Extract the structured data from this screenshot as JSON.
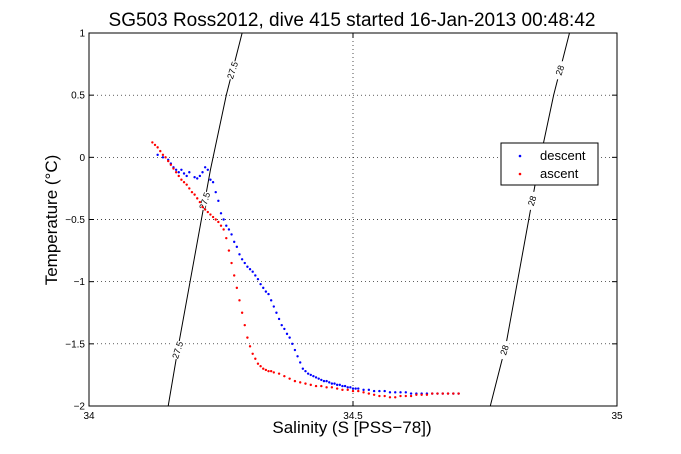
{
  "chart_data": {
    "type": "scatter",
    "title": "SG503 Ross2012, dive 415 started 16-Jan-2013 00:48:42",
    "xlabel": "Salinity (S [PSS−78])",
    "ylabel": "Temperature (°C)",
    "xlim": [
      34,
      35
    ],
    "ylim": [
      -2,
      1
    ],
    "xticks": [
      34,
      34.5,
      35
    ],
    "xtick_labels": [
      "34",
      "34.5",
      "35"
    ],
    "yticks": [
      -2,
      -1.5,
      -1,
      -0.5,
      0,
      0.5,
      1
    ],
    "ytick_labels": [
      "−2",
      "−1.5",
      "−1",
      "−0.5",
      "0",
      "0.5",
      "1"
    ],
    "grid": true,
    "legend_position": "right",
    "series": [
      {
        "name": "descent",
        "color": "#0000ff",
        "x": [
          34.13,
          34.14,
          34.15,
          34.155,
          34.16,
          34.165,
          34.17,
          34.175,
          34.18,
          34.185,
          34.19,
          34.2,
          34.205,
          34.21,
          34.215,
          34.22,
          34.225,
          34.23,
          34.235,
          34.24,
          34.245,
          34.25,
          34.255,
          34.26,
          34.265,
          34.27,
          34.275,
          34.28,
          34.285,
          34.29,
          34.295,
          34.3,
          34.305,
          34.31,
          34.315,
          34.32,
          34.325,
          34.33,
          34.335,
          34.34,
          34.345,
          34.35,
          34.355,
          34.36,
          34.365,
          34.37,
          34.375,
          34.38,
          34.385,
          34.39,
          34.395,
          34.4,
          34.405,
          34.41,
          34.415,
          34.42,
          34.425,
          34.43,
          34.435,
          34.44,
          34.445,
          34.45,
          34.455,
          34.46,
          34.465,
          34.47,
          34.475,
          34.48,
          34.485,
          34.49,
          34.495,
          34.5,
          34.505,
          34.51,
          34.52,
          34.53,
          34.54,
          34.55,
          34.56,
          34.57,
          34.58,
          34.59,
          34.6,
          34.61,
          34.62,
          34.63,
          34.64,
          34.65,
          34.66,
          34.67,
          34.68,
          34.69,
          34.7
        ],
        "y": [
          0.02,
          0.0,
          -0.02,
          -0.05,
          -0.08,
          -0.1,
          -0.12,
          -0.1,
          -0.13,
          -0.15,
          -0.12,
          -0.16,
          -0.17,
          -0.15,
          -0.12,
          -0.08,
          -0.1,
          -0.18,
          -0.2,
          -0.28,
          -0.35,
          -0.45,
          -0.5,
          -0.55,
          -0.58,
          -0.62,
          -0.68,
          -0.72,
          -0.78,
          -0.82,
          -0.85,
          -0.88,
          -0.9,
          -0.92,
          -0.95,
          -0.98,
          -1.02,
          -1.05,
          -1.08,
          -1.1,
          -1.15,
          -1.2,
          -1.25,
          -1.3,
          -1.35,
          -1.38,
          -1.42,
          -1.45,
          -1.5,
          -1.55,
          -1.6,
          -1.65,
          -1.7,
          -1.72,
          -1.74,
          -1.75,
          -1.76,
          -1.77,
          -1.78,
          -1.79,
          -1.8,
          -1.8,
          -1.81,
          -1.82,
          -1.82,
          -1.83,
          -1.83,
          -1.84,
          -1.84,
          -1.85,
          -1.85,
          -1.86,
          -1.86,
          -1.86,
          -1.87,
          -1.87,
          -1.88,
          -1.88,
          -1.88,
          -1.89,
          -1.89,
          -1.89,
          -1.89,
          -1.9,
          -1.9,
          -1.9,
          -1.9,
          -1.9,
          -1.9,
          -1.9,
          -1.9,
          -1.9,
          -1.9
        ]
      },
      {
        "name": "ascent",
        "color": "#ff0000",
        "x": [
          34.12,
          34.125,
          34.13,
          34.135,
          34.14,
          34.145,
          34.15,
          34.155,
          34.16,
          34.165,
          34.17,
          34.175,
          34.18,
          34.185,
          34.19,
          34.195,
          34.2,
          34.205,
          34.21,
          34.215,
          34.22,
          34.225,
          34.23,
          34.235,
          34.24,
          34.245,
          34.25,
          34.255,
          34.26,
          34.265,
          34.27,
          34.275,
          34.28,
          34.285,
          34.29,
          34.295,
          34.3,
          34.305,
          34.31,
          34.315,
          34.32,
          34.325,
          34.33,
          34.335,
          34.34,
          34.345,
          34.35,
          34.36,
          34.37,
          34.38,
          34.39,
          34.4,
          34.41,
          34.42,
          34.43,
          34.44,
          34.45,
          34.46,
          34.47,
          34.48,
          34.49,
          34.5,
          34.51,
          34.52,
          34.53,
          34.54,
          34.55,
          34.56,
          34.57,
          34.58,
          34.59,
          34.6,
          34.61,
          34.62,
          34.63,
          34.64,
          34.65,
          34.66,
          34.67,
          34.68,
          34.69,
          34.7
        ],
        "y": [
          0.12,
          0.1,
          0.08,
          0.05,
          0.02,
          0.0,
          -0.03,
          -0.06,
          -0.09,
          -0.12,
          -0.15,
          -0.18,
          -0.2,
          -0.22,
          -0.25,
          -0.28,
          -0.3,
          -0.33,
          -0.36,
          -0.4,
          -0.42,
          -0.44,
          -0.46,
          -0.48,
          -0.5,
          -0.52,
          -0.55,
          -0.58,
          -0.65,
          -0.75,
          -0.85,
          -0.95,
          -1.05,
          -1.15,
          -1.25,
          -1.35,
          -1.45,
          -1.52,
          -1.58,
          -1.62,
          -1.66,
          -1.68,
          -1.7,
          -1.71,
          -1.72,
          -1.72,
          -1.73,
          -1.74,
          -1.76,
          -1.78,
          -1.8,
          -1.81,
          -1.82,
          -1.83,
          -1.84,
          -1.84,
          -1.85,
          -1.85,
          -1.86,
          -1.87,
          -1.87,
          -1.88,
          -1.88,
          -1.89,
          -1.9,
          -1.91,
          -1.92,
          -1.92,
          -1.93,
          -1.93,
          -1.92,
          -1.92,
          -1.92,
          -1.91,
          -1.91,
          -1.91,
          -1.9,
          -1.9,
          -1.9,
          -1.9,
          -1.9,
          -1.9
        ]
      }
    ],
    "density_contours": [
      {
        "label": "27.5",
        "color": "#000000",
        "x": [
          34.15,
          34.17,
          34.2,
          34.23,
          34.26,
          34.29
        ],
        "y": [
          -2.0,
          -1.5,
          -0.8,
          -0.1,
          0.5,
          1.0
        ]
      },
      {
        "label": "28",
        "color": "#000000",
        "x": [
          34.76,
          34.79,
          34.82,
          34.85,
          34.88,
          34.91
        ],
        "y": [
          -2.0,
          -1.5,
          -0.8,
          -0.1,
          0.5,
          1.0
        ]
      }
    ],
    "contour_label_text": "27.5",
    "contour_label_text2": "28"
  }
}
